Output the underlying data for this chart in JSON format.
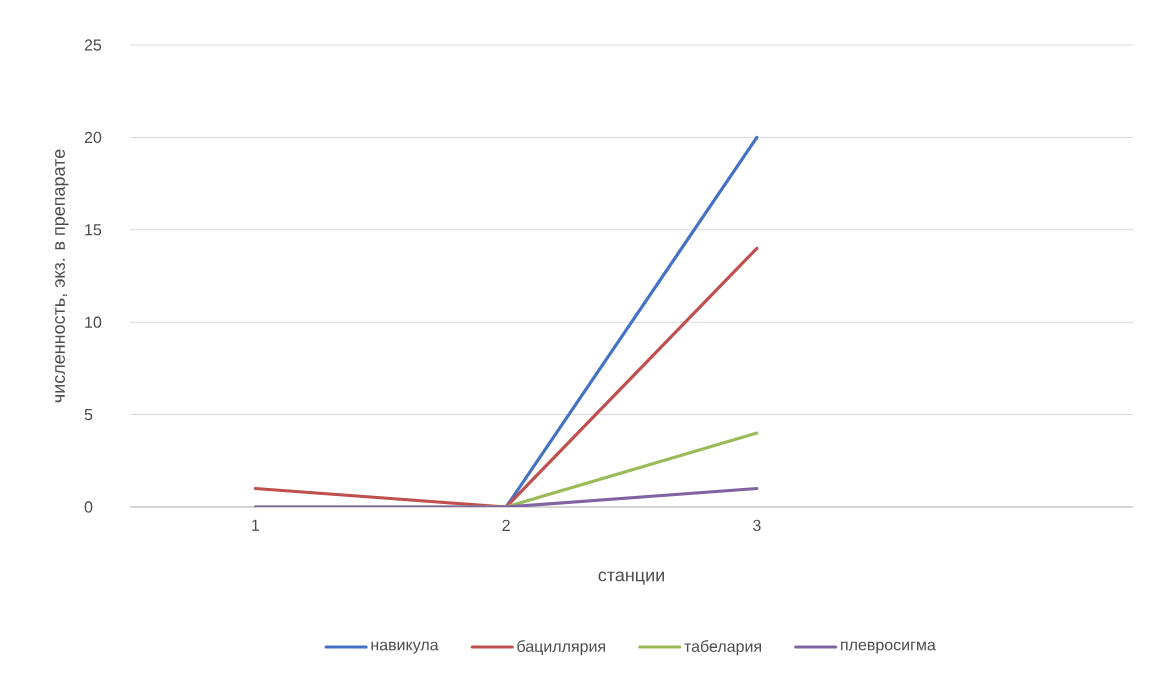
{
  "chart_data": {
    "type": "line",
    "xlabel": "станции",
    "ylabel": "численность, экз. в препарате",
    "categories": [
      "1",
      "2",
      "3",
      null
    ],
    "ylim": [
      0,
      25
    ],
    "yticks": [
      0,
      5,
      10,
      15,
      20,
      25
    ],
    "grid": "y",
    "legend": "bottom",
    "marker": "none",
    "line_style": "solid",
    "series": [
      {
        "name": "навикула",
        "color": "#4472c4",
        "values": [
          null,
          0,
          20,
          null
        ]
      },
      {
        "name": "бациллярия",
        "color": "#c0504d",
        "values": [
          1,
          0,
          14,
          null
        ]
      },
      {
        "name": "табелария",
        "color": "#9bbb59",
        "values": [
          0,
          0,
          4,
          null
        ]
      },
      {
        "name": "плевросигма",
        "color": "#8064a2",
        "values": [
          0,
          0,
          1,
          null
        ]
      }
    ]
  }
}
